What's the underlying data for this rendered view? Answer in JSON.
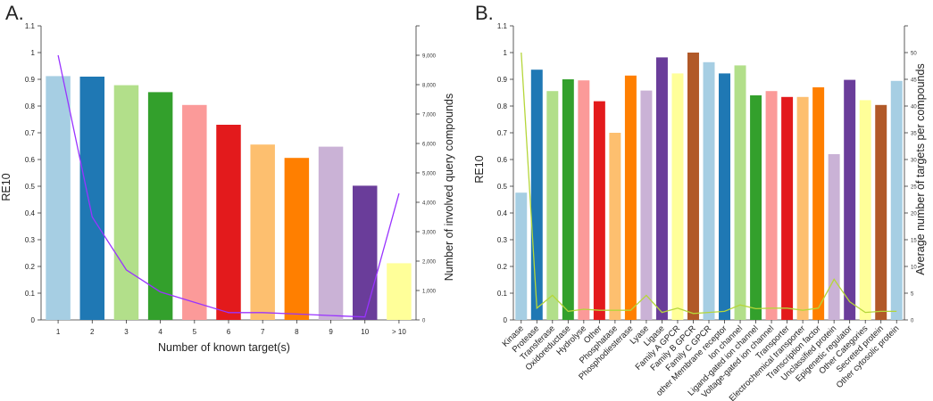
{
  "chart_data": [
    {
      "panel_label": "A.",
      "type": "bar",
      "xlabel": "Number of known target(s)",
      "ylabel": "RE10",
      "y2label": "Number of involved query compounds",
      "ylim": [
        0,
        1.1
      ],
      "y2lim": [
        0,
        10000
      ],
      "yticks": [
        "0",
        "0.1",
        "0.2",
        "0.3",
        "0.4",
        "0.5",
        "0.6",
        "0.7",
        "0.8",
        "0.9",
        "1",
        "1.1"
      ],
      "y2ticks": [
        "0",
        "1,000",
        "2,000",
        "3,000",
        "4,000",
        "5,000",
        "6,000",
        "7,000",
        "8,000",
        "9,000",
        ""
      ],
      "categories": [
        "1",
        "2",
        "3",
        "4",
        "5",
        "6",
        "7",
        "8",
        "9",
        "10",
        "> 10"
      ],
      "values": [
        0.912,
        0.91,
        0.878,
        0.852,
        0.804,
        0.73,
        0.656,
        0.606,
        0.648,
        0.502,
        0.212
      ],
      "bar_colors": [
        "#a6cee3",
        "#1f78b4",
        "#b2df8a",
        "#33a02c",
        "#fb9a99",
        "#e31a1c",
        "#fdbf6f",
        "#ff7f00",
        "#cab2d6",
        "#6a3d9a",
        "#ffff99"
      ],
      "line_series": {
        "name": "Number of involved query compounds",
        "axis": "right",
        "color": "#9933ff",
        "values": [
          9000,
          3500,
          1700,
          950,
          600,
          250,
          250,
          200,
          150,
          100,
          4300
        ]
      }
    },
    {
      "panel_label": "B.",
      "type": "bar",
      "xlabel": "",
      "ylabel": "RE10",
      "y2label": "Average number of targets per compounds",
      "ylim": [
        0,
        1.1
      ],
      "y2lim": [
        0,
        55
      ],
      "yticks": [
        "0",
        "0.1",
        "0.2",
        "0.3",
        "0.4",
        "0.5",
        "0.6",
        "0.7",
        "0.8",
        "0.9",
        "1",
        "1.1"
      ],
      "y2ticks": [
        "0",
        "5",
        "10",
        "15",
        "20",
        "25",
        "30",
        "35",
        "40",
        "45",
        "50",
        ""
      ],
      "categories": [
        "Kinase",
        "Protease",
        "Transferase",
        "Oxidoreductase",
        "Hydrolyse",
        "Other",
        "Phosphatase",
        "Phosphodiesterase",
        "Lyase",
        "Ligase",
        "Family A GPCR",
        "Family B GPCR",
        "Family C GPCR",
        "other Membrane receptor",
        "Ion channel",
        "Ligand-gated ion channel",
        "Voltage-gated ion channel",
        "Transporter",
        "Electrochemical transporter",
        "Transcription factor",
        "Unclassified protein",
        "Epigenetic regulator",
        "Other Categories",
        "Secreted protein",
        "Other cytosolic protein"
      ],
      "values": [
        0.476,
        0.936,
        0.856,
        0.9,
        0.896,
        0.818,
        0.7,
        0.914,
        0.858,
        0.982,
        0.922,
        1.0,
        0.964,
        0.922,
        0.952,
        0.84,
        0.856,
        0.834,
        0.834,
        0.87,
        0.62,
        0.898,
        0.822,
        0.804,
        0.894
      ],
      "bar_colors": [
        "#a6cee3",
        "#1f78b4",
        "#b2df8a",
        "#33a02c",
        "#fb9a99",
        "#e31a1c",
        "#fdbf6f",
        "#ff7f00",
        "#cab2d6",
        "#6a3d9a",
        "#ffff99",
        "#b15928",
        "#a6cee3",
        "#1f78b4",
        "#b2df8a",
        "#33a02c",
        "#fb9a99",
        "#e31a1c",
        "#fdbf6f",
        "#ff7f00",
        "#cab2d6",
        "#6a3d9a",
        "#ffff99",
        "#b15928",
        "#a6cee3"
      ],
      "line_series": {
        "name": "Average number of targets per compounds",
        "axis": "right",
        "color": "#b5d63a",
        "values": [
          50,
          2.2,
          4.6,
          1.6,
          2,
          1.8,
          1.8,
          1.8,
          4.6,
          1.4,
          2.2,
          1.2,
          1.4,
          1.6,
          2.8,
          2.1,
          2.2,
          2.2,
          1.8,
          2.2,
          7.6,
          3.4,
          1.4,
          1.6,
          1.6
        ]
      }
    }
  ]
}
